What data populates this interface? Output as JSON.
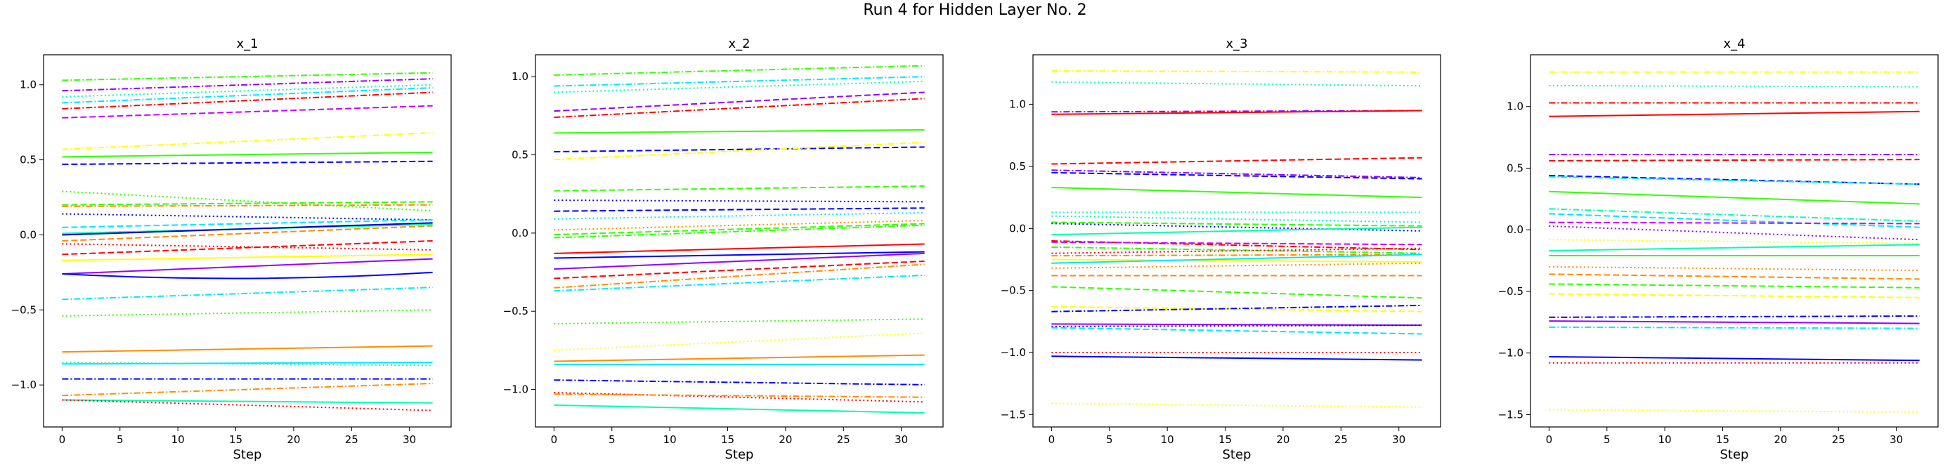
{
  "figure": {
    "title": "Run 4 for Hidden Layer No. 2"
  },
  "chart_data": [
    {
      "type": "line",
      "title": "x_1",
      "xlabel": "Step",
      "ylabel": "",
      "xlim": [
        -1.6,
        33.6
      ],
      "ylim": [
        -1.28,
        1.2
      ],
      "xticks": [
        0,
        5,
        10,
        15,
        20,
        25,
        30
      ],
      "yticks": [
        -1.0,
        -0.5,
        0.0,
        0.5,
        1.0
      ],
      "ytick_labels": [
        "−1.0",
        "−0.5",
        "0.0",
        "0.5",
        "1.0"
      ],
      "x": [
        0,
        32
      ],
      "series": [
        {
          "values": [
            1.03,
            1.08
          ],
          "color": "#32ff00",
          "dash": "dashdot"
        },
        {
          "values": [
            0.96,
            1.04
          ],
          "color": "#9400ff",
          "dash": "dashdot"
        },
        {
          "values": [
            0.92,
            1.0
          ],
          "color": "#00ffb0",
          "dash": "dotted"
        },
        {
          "values": [
            0.88,
            0.98
          ],
          "color": "#00e5ff",
          "dash": "dashdot"
        },
        {
          "values": [
            0.84,
            0.95
          ],
          "color": "#ff0000",
          "dash": "dashdot"
        },
        {
          "values": [
            0.78,
            0.86
          ],
          "color": "#c800ff",
          "dash": "dashed"
        },
        {
          "values": [
            0.57,
            0.68
          ],
          "color": "#ffff00",
          "dash": "dashdot"
        },
        {
          "values": [
            0.52,
            0.55
          ],
          "color": "#32ff00",
          "dash": "solid"
        },
        {
          "values": [
            0.47,
            0.49
          ],
          "color": "#0000ff",
          "dash": "dashed"
        },
        {
          "values": [
            0.29,
            0.16
          ],
          "color": "#32ff00",
          "dash": "dotted"
        },
        {
          "values": [
            0.2,
            0.22
          ],
          "color": "#32ff00",
          "dash": "dashed"
        },
        {
          "values": [
            0.19,
            0.2
          ],
          "color": "#ff8c00",
          "dash": "dashdot"
        },
        {
          "values": [
            0.14,
            0.1
          ],
          "color": "#0000ff",
          "dash": "dotted"
        },
        {
          "values": [
            0.05,
            0.1
          ],
          "color": "#00e5ff",
          "dash": "dashed"
        },
        {
          "values": [
            0.01,
            0.07
          ],
          "color": "#00ffb0",
          "dash": "solid"
        },
        {
          "values": [
            0.0,
            0.08
          ],
          "color": "#0000cc",
          "dash": "solid"
        },
        {
          "values": [
            -0.04,
            0.06
          ],
          "color": "#ff8c00",
          "dash": "dashed"
        },
        {
          "values": [
            -0.06,
            -0.1
          ],
          "color": "#ff0000",
          "dash": "dotted"
        },
        {
          "values": [
            -0.13,
            -0.04
          ],
          "color": "#ff0000",
          "dash": "dashed"
        },
        {
          "values": [
            -0.17,
            -0.13
          ],
          "color": "#ffff00",
          "dash": "solid"
        },
        {
          "values": [
            -0.26,
            -0.16
          ],
          "color": "#9400ff",
          "dash": "solid"
        },
        {
          "values": [
            -0.26,
            -0.25
          ],
          "color": "#0000ff",
          "dash": "solid",
          "mid": -0.29
        },
        {
          "values": [
            -0.43,
            -0.35
          ],
          "color": "#00e5ff",
          "dash": "dashdot"
        },
        {
          "values": [
            -0.54,
            -0.5
          ],
          "color": "#32ff00",
          "dash": "dotted"
        },
        {
          "values": [
            -0.78,
            -0.74
          ],
          "color": "#ff8c00",
          "dash": "solid"
        },
        {
          "values": [
            -0.86,
            -0.85
          ],
          "color": "#00e5ff",
          "dash": "solid"
        },
        {
          "values": [
            -0.85,
            -0.87
          ],
          "color": "#00ffb0",
          "dash": "dotted"
        },
        {
          "values": [
            -0.96,
            -0.96
          ],
          "color": "#0000ff",
          "dash": "dashdot"
        },
        {
          "values": [
            -1.07,
            -0.99
          ],
          "color": "#ff8c00",
          "dash": "dashdot"
        },
        {
          "values": [
            -1.1,
            -1.12
          ],
          "color": "#00ffb0",
          "dash": "solid"
        },
        {
          "values": [
            -1.1,
            -1.17
          ],
          "color": "#ff0000",
          "dash": "dotted"
        }
      ]
    },
    {
      "type": "line",
      "title": "x_2",
      "xlabel": "Step",
      "ylabel": "",
      "xlim": [
        -1.6,
        33.6
      ],
      "ylim": [
        -1.24,
        1.14
      ],
      "xticks": [
        0,
        5,
        10,
        15,
        20,
        25,
        30
      ],
      "yticks": [
        -1.0,
        -0.5,
        0.0,
        0.5,
        1.0
      ],
      "ytick_labels": [
        "−1.0",
        "−0.5",
        "0.0",
        "0.5",
        "1.0"
      ],
      "x": [
        0,
        32
      ],
      "series": [
        {
          "values": [
            1.01,
            1.07
          ],
          "color": "#32ff00",
          "dash": "dashdot"
        },
        {
          "values": [
            0.94,
            1.0
          ],
          "color": "#00e5ff",
          "dash": "dashdot"
        },
        {
          "values": [
            0.9,
            0.97
          ],
          "color": "#00ffb0",
          "dash": "dotted"
        },
        {
          "values": [
            0.78,
            0.9
          ],
          "color": "#9400ff",
          "dash": "dashed"
        },
        {
          "values": [
            0.74,
            0.86
          ],
          "color": "#ff0000",
          "dash": "dashdot"
        },
        {
          "values": [
            0.64,
            0.66
          ],
          "color": "#32ff00",
          "dash": "solid"
        },
        {
          "values": [
            0.52,
            0.55
          ],
          "color": "#0000ff",
          "dash": "dashed"
        },
        {
          "values": [
            0.47,
            0.58
          ],
          "color": "#ffff00",
          "dash": "dashdot"
        },
        {
          "values": [
            0.27,
            0.3
          ],
          "color": "#32ff00",
          "dash": "dashed"
        },
        {
          "values": [
            0.21,
            0.2
          ],
          "color": "#0000ff",
          "dash": "dotted"
        },
        {
          "values": [
            0.14,
            0.16
          ],
          "color": "#0000ff",
          "dash": "dashed"
        },
        {
          "values": [
            0.09,
            0.13
          ],
          "color": "#00e5ff",
          "dash": "dotted"
        },
        {
          "values": [
            0.02,
            0.08
          ],
          "color": "#ff8c00",
          "dash": "dotted"
        },
        {
          "values": [
            -0.01,
            0.06
          ],
          "color": "#32ff00",
          "dash": "dashed"
        },
        {
          "values": [
            -0.03,
            0.05
          ],
          "color": "#32ff00",
          "dash": "dashdot"
        },
        {
          "values": [
            -0.13,
            -0.07
          ],
          "color": "#ff0000",
          "dash": "solid"
        },
        {
          "values": [
            -0.16,
            -0.12
          ],
          "color": "#0000ff",
          "dash": "solid"
        },
        {
          "values": [
            -0.23,
            -0.13
          ],
          "color": "#9400ff",
          "dash": "solid"
        },
        {
          "values": [
            -0.29,
            -0.18
          ],
          "color": "#ff0000",
          "dash": "dashed"
        },
        {
          "values": [
            -0.35,
            -0.2
          ],
          "color": "#ff8c00",
          "dash": "dashdot"
        },
        {
          "values": [
            -0.37,
            -0.27
          ],
          "color": "#00e5ff",
          "dash": "dashdot"
        },
        {
          "values": [
            -0.58,
            -0.55
          ],
          "color": "#32ff00",
          "dash": "dotted"
        },
        {
          "values": [
            -0.75,
            -0.64
          ],
          "color": "#ffff00",
          "dash": "dotted"
        },
        {
          "values": [
            -0.82,
            -0.78
          ],
          "color": "#ff8c00",
          "dash": "solid"
        },
        {
          "values": [
            -0.84,
            -0.84
          ],
          "color": "#00e5ff",
          "dash": "solid"
        },
        {
          "values": [
            -0.94,
            -0.97
          ],
          "color": "#0000ff",
          "dash": "dashdot"
        },
        {
          "values": [
            -1.02,
            -1.08
          ],
          "color": "#ff0000",
          "dash": "dotted"
        },
        {
          "values": [
            -1.03,
            -1.05
          ],
          "color": "#ff8c00",
          "dash": "dashdot"
        },
        {
          "values": [
            -1.1,
            -1.15
          ],
          "color": "#00ffb0",
          "dash": "solid"
        }
      ]
    },
    {
      "type": "line",
      "title": "x_3",
      "xlabel": "Step",
      "ylabel": "",
      "xlim": [
        -1.6,
        33.6
      ],
      "ylim": [
        -1.6,
        1.4
      ],
      "xticks": [
        0,
        5,
        10,
        15,
        20,
        25,
        30
      ],
      "yticks": [
        -1.5,
        -1.0,
        -0.5,
        0.0,
        0.5,
        1.0
      ],
      "ytick_labels": [
        "−1.5",
        "−1.0",
        "−0.5",
        "0.0",
        "0.5",
        "1.0"
      ],
      "x": [
        0,
        32
      ],
      "series": [
        {
          "values": [
            1.27,
            1.26
          ],
          "color": "#ffff00",
          "dash": "dashdot"
        },
        {
          "values": [
            1.18,
            1.15
          ],
          "color": "#00ffb0",
          "dash": "dotted"
        },
        {
          "values": [
            0.94,
            0.95
          ],
          "color": "#9400ff",
          "dash": "dashdot"
        },
        {
          "values": [
            0.92,
            0.95
          ],
          "color": "#ff0000",
          "dash": "solid"
        },
        {
          "values": [
            0.52,
            0.57
          ],
          "color": "#ff0000",
          "dash": "dashed"
        },
        {
          "values": [
            0.47,
            0.41
          ],
          "color": "#9400ff",
          "dash": "dashdot"
        },
        {
          "values": [
            0.45,
            0.4
          ],
          "color": "#0000ff",
          "dash": "dashed"
        },
        {
          "values": [
            0.33,
            0.25
          ],
          "color": "#32ff00",
          "dash": "solid"
        },
        {
          "values": [
            0.13,
            0.13
          ],
          "color": "#00ffb0",
          "dash": "dotted"
        },
        {
          "values": [
            0.1,
            0.05
          ],
          "color": "#00e5ff",
          "dash": "dotted"
        },
        {
          "values": [
            0.05,
            0.02
          ],
          "color": "#32ff00",
          "dash": "dashed"
        },
        {
          "values": [
            0.04,
            -0.02
          ],
          "color": "#0000ff",
          "dash": "dotted"
        },
        {
          "values": [
            -0.05,
            0.01
          ],
          "color": "#00ffb0",
          "dash": "solid"
        },
        {
          "values": [
            -0.1,
            -0.17
          ],
          "color": "#ff0000",
          "dash": "dashdot"
        },
        {
          "values": [
            -0.11,
            -0.13
          ],
          "color": "#c800ff",
          "dash": "dashed"
        },
        {
          "values": [
            -0.15,
            -0.2
          ],
          "color": "#32ff00",
          "dash": "dashdot"
        },
        {
          "values": [
            -0.2,
            -0.16
          ],
          "color": "#ff0000",
          "dash": "dotted"
        },
        {
          "values": [
            -0.22,
            -0.21
          ],
          "color": "#ff8c00",
          "dash": "dashdot"
        },
        {
          "values": [
            -0.25,
            -0.27
          ],
          "color": "#ffff00",
          "dash": "solid"
        },
        {
          "values": [
            -0.28,
            -0.21
          ],
          "color": "#00e5ff",
          "dash": "solid"
        },
        {
          "values": [
            -0.32,
            -0.28
          ],
          "color": "#ff8c00",
          "dash": "dotted"
        },
        {
          "values": [
            -0.38,
            -0.38
          ],
          "color": "#ff8c00",
          "dash": "dashed"
        },
        {
          "values": [
            -0.47,
            -0.56
          ],
          "color": "#32ff00",
          "dash": "dashed"
        },
        {
          "values": [
            -0.63,
            -0.67
          ],
          "color": "#ffff00",
          "dash": "dashed"
        },
        {
          "values": [
            -0.67,
            -0.62
          ],
          "color": "#0000ff",
          "dash": "dashdot"
        },
        {
          "values": [
            -0.77,
            -0.78
          ],
          "color": "#9400ff",
          "dash": "solid"
        },
        {
          "values": [
            -0.79,
            -0.78
          ],
          "color": "#0000ff",
          "dash": "dotted"
        },
        {
          "values": [
            -0.8,
            -0.85
          ],
          "color": "#00e5ff",
          "dash": "dashed"
        },
        {
          "values": [
            -1.0,
            -1.0
          ],
          "color": "#ff0000",
          "dash": "dotted"
        },
        {
          "values": [
            -1.03,
            -1.06
          ],
          "color": "#0000ff",
          "dash": "solid"
        },
        {
          "values": [
            -1.41,
            -1.44
          ],
          "color": "#ffff00",
          "dash": "dotted"
        }
      ]
    },
    {
      "type": "line",
      "title": "x_4",
      "xlabel": "Step",
      "ylabel": "",
      "xlim": [
        -1.6,
        33.6
      ],
      "ylim": [
        -1.6,
        1.42
      ],
      "xticks": [
        0,
        5,
        10,
        15,
        20,
        25,
        30
      ],
      "yticks": [
        -1.5,
        -1.0,
        -0.5,
        0.0,
        0.5,
        1.0
      ],
      "ytick_labels": [
        "−1.5",
        "−1.0",
        "−0.5",
        "0.0",
        "0.5",
        "1.0"
      ],
      "x": [
        0,
        32
      ],
      "series": [
        {
          "values": [
            1.28,
            1.28
          ],
          "color": "#ffff00",
          "dash": "dashdot"
        },
        {
          "values": [
            1.17,
            1.16
          ],
          "color": "#00ffb0",
          "dash": "dotted"
        },
        {
          "values": [
            1.03,
            1.03
          ],
          "color": "#ff0000",
          "dash": "dashdot"
        },
        {
          "values": [
            0.92,
            0.96
          ],
          "color": "#ff0000",
          "dash": "solid"
        },
        {
          "values": [
            0.61,
            0.61
          ],
          "color": "#9400ff",
          "dash": "dashdot"
        },
        {
          "values": [
            0.56,
            0.57
          ],
          "color": "#ff0000",
          "dash": "dashed"
        },
        {
          "values": [
            0.44,
            0.37
          ],
          "color": "#0000ff",
          "dash": "dashed"
        },
        {
          "values": [
            0.43,
            0.37
          ],
          "color": "#00e5ff",
          "dash": "dashdot"
        },
        {
          "values": [
            0.31,
            0.21
          ],
          "color": "#32ff00",
          "dash": "solid"
        },
        {
          "values": [
            0.17,
            0.07
          ],
          "color": "#00ffb0",
          "dash": "dashdot"
        },
        {
          "values": [
            0.13,
            0.02
          ],
          "color": "#00e5ff",
          "dash": "dashed"
        },
        {
          "values": [
            0.06,
            0.05
          ],
          "color": "#c800ff",
          "dash": "dashed"
        },
        {
          "values": [
            0.03,
            -0.08
          ],
          "color": "#9400ff",
          "dash": "dotted"
        },
        {
          "values": [
            -0.08,
            -0.11
          ],
          "color": "#ffff00",
          "dash": "dotted"
        },
        {
          "values": [
            -0.17,
            -0.12
          ],
          "color": "#00ffb0",
          "dash": "solid"
        },
        {
          "values": [
            -0.21,
            -0.21
          ],
          "color": "#32ff00",
          "dash": "solid"
        },
        {
          "values": [
            -0.3,
            -0.33
          ],
          "color": "#ff8c00",
          "dash": "dotted"
        },
        {
          "values": [
            -0.36,
            -0.4
          ],
          "color": "#ff8c00",
          "dash": "dashed"
        },
        {
          "values": [
            -0.44,
            -0.47
          ],
          "color": "#32ff00",
          "dash": "dashed"
        },
        {
          "values": [
            -0.52,
            -0.55
          ],
          "color": "#ffff00",
          "dash": "dashed"
        },
        {
          "values": [
            -0.71,
            -0.7
          ],
          "color": "#0000ff",
          "dash": "dashdot"
        },
        {
          "values": [
            -0.74,
            -0.76
          ],
          "color": "#9400ff",
          "dash": "solid"
        },
        {
          "values": [
            -0.79,
            -0.8
          ],
          "color": "#00e5ff",
          "dash": "dashdot"
        },
        {
          "values": [
            -1.03,
            -1.06
          ],
          "color": "#0000ff",
          "dash": "solid"
        },
        {
          "values": [
            -1.08,
            -1.08
          ],
          "color": "#ff0000",
          "dash": "dotted"
        },
        {
          "values": [
            -1.46,
            -1.48
          ],
          "color": "#ffff00",
          "dash": "dotted"
        }
      ]
    }
  ]
}
